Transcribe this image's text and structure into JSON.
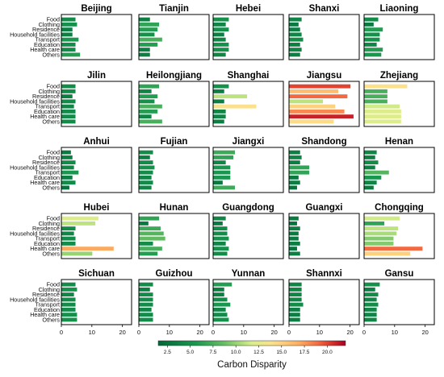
{
  "chart_data": {
    "type": "bar",
    "orientation": "horizontal",
    "categories": [
      "Food",
      "Clothing",
      "Residence",
      "Household facilities",
      "Transport",
      "Education",
      "Health care",
      "Others"
    ],
    "xlim": [
      0,
      23
    ],
    "xticks": [
      0,
      10,
      20
    ],
    "colorbar": {
      "label": "Carbon Disparity",
      "range": [
        1.5,
        22
      ],
      "ticks": [
        2.5,
        5.0,
        7.5,
        10.0,
        12.5,
        15.0,
        17.5,
        20.0
      ],
      "tick_labels": [
        "2.5",
        "5.0",
        "7.5",
        "10.0",
        "12.5",
        "15.0",
        "17.5",
        "20.0"
      ],
      "colormap": "RdYlGn_r"
    },
    "panels": [
      {
        "region": "Beijing",
        "values": [
          4.5,
          5,
          3.5,
          3.5,
          5.5,
          4.5,
          4.5,
          6
        ]
      },
      {
        "region": "Tianjin",
        "values": [
          3.5,
          6.5,
          6,
          5,
          7.5,
          6,
          3.5,
          3.5
        ]
      },
      {
        "region": "Hebei",
        "values": [
          5,
          4,
          5,
          3.5,
          4,
          5,
          5,
          4
        ]
      },
      {
        "region": "Shanxi",
        "values": [
          4,
          3,
          3.5,
          4,
          4.5,
          3.5,
          4,
          3.5
        ]
      },
      {
        "region": "Liaoning",
        "values": [
          4.5,
          3,
          6,
          5,
          5,
          4,
          6,
          5.5
        ]
      },
      {
        "region": "Jilin",
        "values": [
          4.5,
          4.5,
          3.5,
          4.5,
          4,
          4.5,
          4.5,
          4.5
        ]
      },
      {
        "region": "Heilongjiang",
        "values": [
          6.5,
          4,
          6,
          5,
          7.5,
          6,
          4,
          7.5
        ]
      },
      {
        "region": "Shanghai",
        "values": [
          5,
          3.5,
          11,
          3.5,
          14,
          4,
          4,
          3.5
        ]
      },
      {
        "region": "Jiangsu",
        "values": [
          20,
          16,
          19,
          11,
          15,
          18,
          21,
          14.5
        ]
      },
      {
        "region": "Zhejiang",
        "values": [
          14,
          7.5,
          7.5,
          7.5,
          11.5,
          12,
          12,
          12
        ]
      },
      {
        "region": "Anhui",
        "values": [
          3,
          3.5,
          4.5,
          4,
          5.5,
          3.5,
          4.5,
          2.5
        ]
      },
      {
        "region": "Fujian",
        "values": [
          4.5,
          3.5,
          4.5,
          5,
          4.5,
          4,
          4.5,
          4
        ]
      },
      {
        "region": "Jiangxi",
        "values": [
          7,
          6.5,
          4,
          5.5,
          5.5,
          5.5,
          3,
          7
        ]
      },
      {
        "region": "Shandong",
        "values": [
          3.5,
          4,
          3.5,
          6.5,
          6.5,
          3,
          3.5,
          2.5
        ]
      },
      {
        "region": "Henan",
        "values": [
          4,
          3.5,
          4.5,
          3.5,
          8,
          5.5,
          4,
          3
        ]
      },
      {
        "region": "Hubei",
        "values": [
          12,
          11,
          4.5,
          4,
          4.5,
          4.5,
          17,
          10
        ]
      },
      {
        "region": "Hunan",
        "values": [
          6.5,
          3,
          7,
          8,
          8.5,
          4.5,
          7.5,
          6
        ]
      },
      {
        "region": "Guangdong",
        "values": [
          4,
          3,
          4.5,
          4.5,
          5,
          4,
          5,
          4.5
        ]
      },
      {
        "region": "Guangxi",
        "values": [
          3,
          2.5,
          3.5,
          3,
          3,
          3.5,
          2.5,
          3.5
        ]
      },
      {
        "region": "Chongqing",
        "values": [
          11.5,
          6.5,
          11,
          10.5,
          9.5,
          9.5,
          19,
          15
        ]
      },
      {
        "region": "Sichuan",
        "values": [
          4.5,
          5,
          4,
          4.5,
          4.5,
          4.5,
          5,
          5
        ]
      },
      {
        "region": "Guizhou",
        "values": [
          4.5,
          3.5,
          4.5,
          4.5,
          4.5,
          4,
          4.5,
          4.5
        ]
      },
      {
        "region": "Yunnan",
        "values": [
          6,
          3.5,
          3.5,
          4.5,
          5.5,
          4,
          4.5,
          5
        ]
      },
      {
        "region": "Shannxi",
        "values": [
          4,
          4,
          4,
          4,
          4.5,
          3.5,
          3.5,
          3.5
        ]
      },
      {
        "region": "Gansu",
        "values": [
          5,
          3.5,
          4.5,
          4,
          4.5,
          4,
          4,
          4
        ]
      }
    ]
  }
}
